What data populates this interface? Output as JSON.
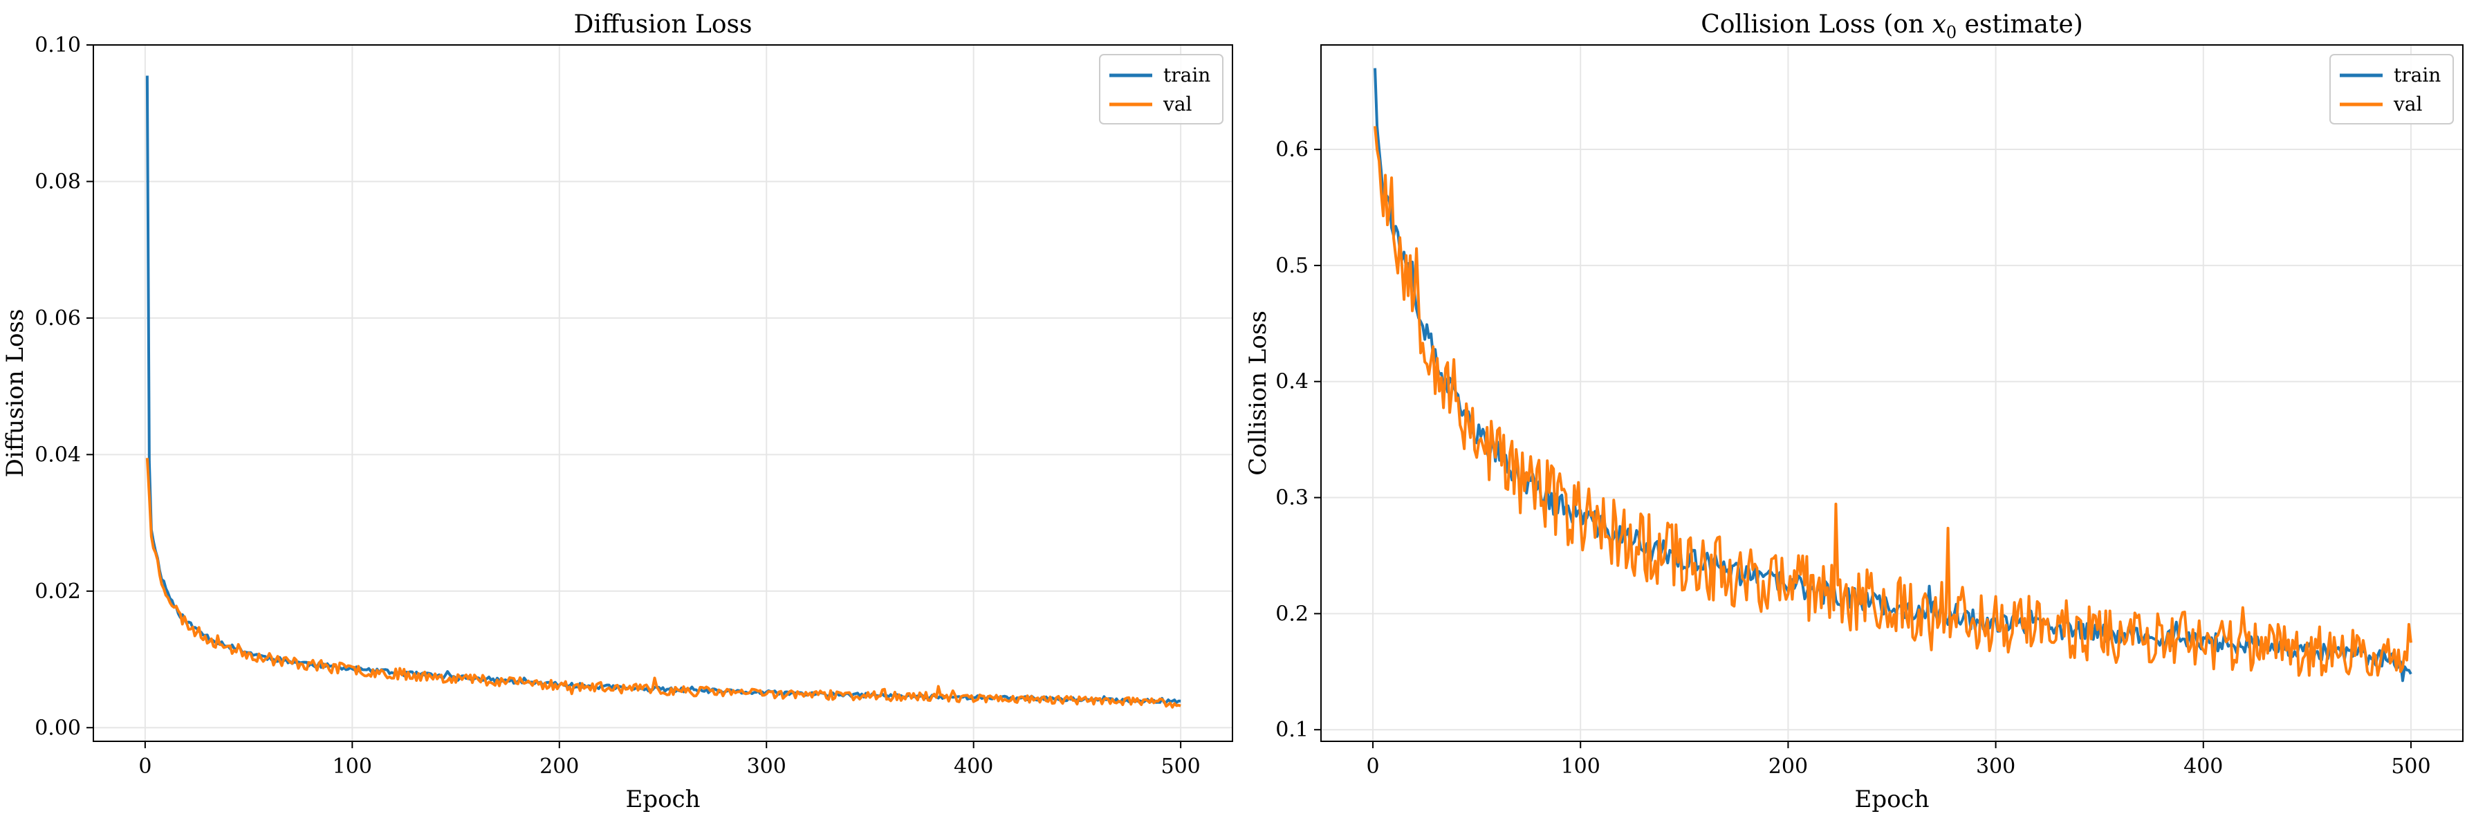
{
  "colors": {
    "train": "#1f77b4",
    "val": "#ff7f0e",
    "grid": "#e6e6e6",
    "axes": "#000000"
  },
  "chart_data": [
    {
      "type": "line",
      "title": "Diffusion Loss",
      "xlabel": "Epoch",
      "ylabel": "Diffusion Loss",
      "xlim": [
        -25,
        525
      ],
      "ylim": [
        -0.002,
        0.1
      ],
      "xticks": [
        0,
        100,
        200,
        300,
        400,
        500
      ],
      "yticks": [
        0.0,
        0.02,
        0.04,
        0.06,
        0.08,
        0.1
      ],
      "ytick_labels": [
        "0.00",
        "0.02",
        "0.04",
        "0.06",
        "0.08",
        "0.10"
      ],
      "grid": true,
      "legend_position": "top-right",
      "series": [
        {
          "name": "train",
          "color": "#1f77b4",
          "x": [
            1,
            2,
            3,
            5,
            8,
            12,
            17,
            24,
            32,
            42,
            55,
            70,
            88,
            110,
            135,
            165,
            200,
            240,
            290,
            340,
            390,
            440,
            470,
            490,
            500
          ],
          "values": [
            0.0955,
            0.039,
            0.029,
            0.026,
            0.022,
            0.019,
            0.0165,
            0.0145,
            0.013,
            0.0118,
            0.0105,
            0.0097,
            0.009,
            0.0083,
            0.0077,
            0.0071,
            0.0063,
            0.0057,
            0.0052,
            0.0048,
            0.0045,
            0.0042,
            0.004,
            0.0039,
            0.0039
          ],
          "noise": 0.0004,
          "seed": 11
        },
        {
          "name": "val",
          "color": "#ff7f0e",
          "x": [
            1,
            2,
            3,
            5,
            8,
            12,
            17,
            24,
            32,
            42,
            55,
            70,
            88,
            110,
            135,
            165,
            200,
            240,
            290,
            340,
            390,
            440,
            470,
            490,
            500
          ],
          "values": [
            0.0395,
            0.034,
            0.028,
            0.0255,
            0.0215,
            0.0188,
            0.0162,
            0.0142,
            0.0128,
            0.0116,
            0.0104,
            0.0096,
            0.0089,
            0.0082,
            0.0076,
            0.007,
            0.0062,
            0.0056,
            0.0051,
            0.0047,
            0.0044,
            0.0041,
            0.0039,
            0.0037,
            0.0032
          ],
          "noise": 0.0009,
          "seed": 23
        }
      ]
    },
    {
      "type": "line",
      "title": "Collision Loss (on x0 estimate)",
      "title_parts": [
        "Collision Loss (on ",
        "x",
        "0",
        " estimate)"
      ],
      "xlabel": "Epoch",
      "ylabel": "Collision Loss",
      "xlim": [
        -25,
        525
      ],
      "ylim": [
        0.09,
        0.69
      ],
      "xticks": [
        0,
        100,
        200,
        300,
        400,
        500
      ],
      "yticks": [
        0.1,
        0.2,
        0.3,
        0.4,
        0.5,
        0.6
      ],
      "ytick_labels": [
        "0.1",
        "0.2",
        "0.3",
        "0.4",
        "0.5",
        "0.6"
      ],
      "grid": true,
      "legend_position": "top-right",
      "series": [
        {
          "name": "train",
          "color": "#1f77b4",
          "x": [
            1,
            2,
            3,
            5,
            8,
            12,
            17,
            24,
            32,
            42,
            55,
            70,
            88,
            110,
            135,
            165,
            200,
            240,
            290,
            340,
            390,
            440,
            470,
            490,
            500
          ],
          "values": [
            0.67,
            0.62,
            0.6,
            0.575,
            0.55,
            0.52,
            0.49,
            0.45,
            0.41,
            0.375,
            0.345,
            0.32,
            0.295,
            0.275,
            0.255,
            0.24,
            0.225,
            0.21,
            0.195,
            0.185,
            0.178,
            0.17,
            0.165,
            0.16,
            0.148
          ],
          "noise": 0.012,
          "seed": 37
        },
        {
          "name": "val",
          "color": "#ff7f0e",
          "x": [
            1,
            2,
            3,
            5,
            8,
            12,
            17,
            24,
            32,
            42,
            55,
            70,
            88,
            110,
            135,
            165,
            200,
            240,
            290,
            340,
            390,
            440,
            470,
            490,
            500
          ],
          "values": [
            0.62,
            0.6,
            0.59,
            0.57,
            0.55,
            0.52,
            0.49,
            0.45,
            0.41,
            0.375,
            0.345,
            0.32,
            0.295,
            0.275,
            0.255,
            0.24,
            0.225,
            0.21,
            0.195,
            0.185,
            0.178,
            0.17,
            0.165,
            0.16,
            0.175
          ],
          "noise": 0.035,
          "seed": 53
        }
      ]
    }
  ]
}
